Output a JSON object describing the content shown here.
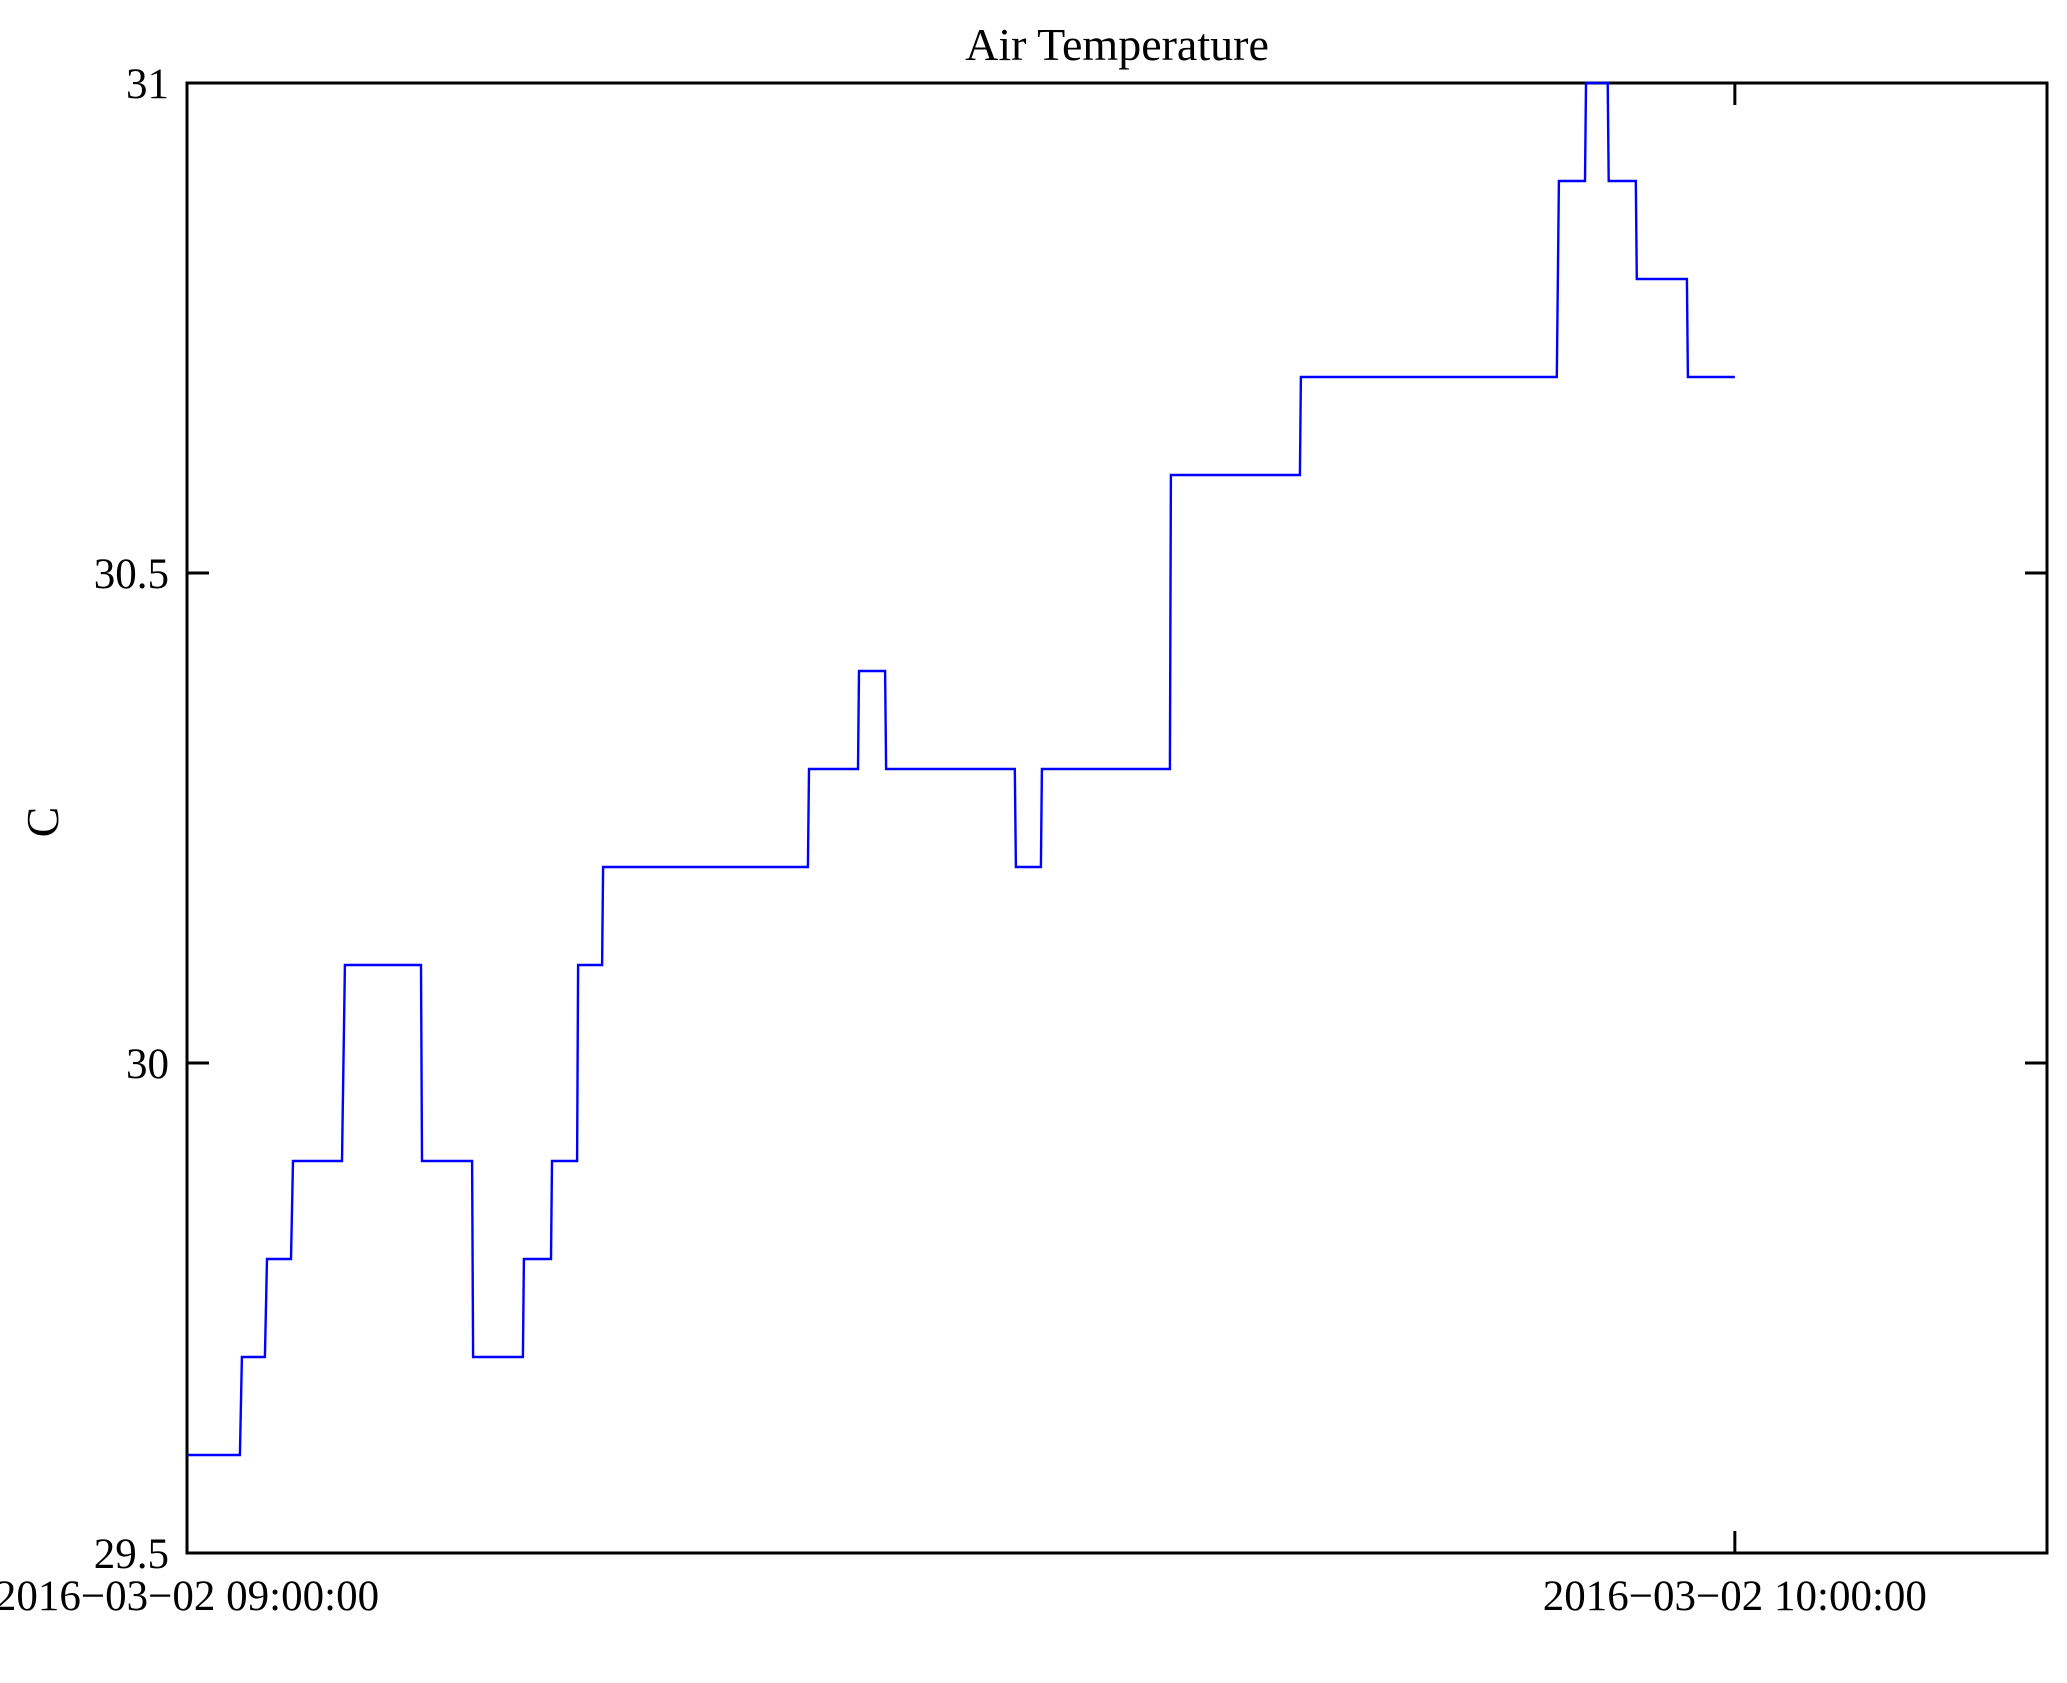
{
  "chart_data": {
    "type": "line",
    "title": "Air Temperature",
    "ylabel": "C",
    "xlabel": "",
    "x_unit": "minutes after first tick (2016-03-02 09:00:00)",
    "ylim": [
      29.5,
      31
    ],
    "xlim_minutes": [
      0,
      72.1
    ],
    "grid": false,
    "legend": "none",
    "line_color": "#0000ff",
    "axis_color": "#000000",
    "background_color": "#ffffff",
    "y_ticks": [
      {
        "value": 29.5,
        "label": "29.5"
      },
      {
        "value": 30,
        "label": "30"
      },
      {
        "value": 30.5,
        "label": "30.5"
      },
      {
        "value": 31,
        "label": "31"
      }
    ],
    "x_ticks": [
      {
        "minute": 0,
        "label": "2016−03−02 09:00:00"
      },
      {
        "minute": 60,
        "label": "2016−03−02 10:00:00"
      }
    ],
    "series_name": "Air Temperature (C)",
    "steps_minutes_temp": [
      [
        0.0,
        2.05,
        29.6
      ],
      [
        2.13,
        3.02,
        29.7
      ],
      [
        3.1,
        4.03,
        29.8
      ],
      [
        4.11,
        6.01,
        29.9
      ],
      [
        6.12,
        9.07,
        30.1
      ],
      [
        9.11,
        11.05,
        29.9
      ],
      [
        11.09,
        13.02,
        29.7
      ],
      [
        13.06,
        14.11,
        29.8
      ],
      [
        14.15,
        15.12,
        29.9
      ],
      [
        15.16,
        16.09,
        30.1
      ],
      [
        16.13,
        24.07,
        30.2
      ],
      [
        24.11,
        26.01,
        30.3
      ],
      [
        26.05,
        27.06,
        30.4
      ],
      [
        27.1,
        32.09,
        30.3
      ],
      [
        32.13,
        33.1,
        30.2
      ],
      [
        33.14,
        38.1,
        30.3
      ],
      [
        38.14,
        43.14,
        30.6
      ],
      [
        43.18,
        53.1,
        30.7
      ],
      [
        53.18,
        54.19,
        30.9
      ],
      [
        54.23,
        55.07,
        31.0
      ],
      [
        55.11,
        56.16,
        30.9
      ],
      [
        56.2,
        58.14,
        30.8
      ],
      [
        58.18,
        60.0,
        30.7
      ]
    ]
  }
}
